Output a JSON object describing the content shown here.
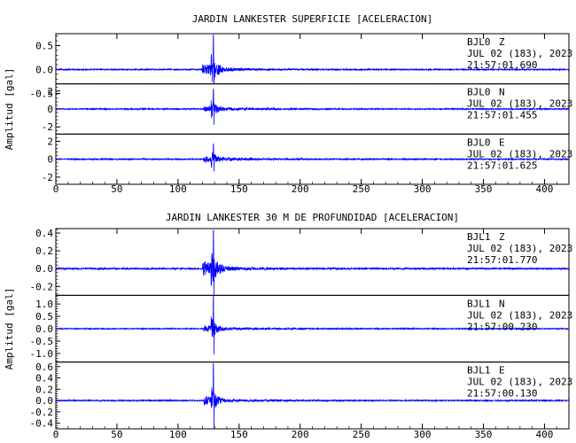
{
  "chart_data": [
    {
      "type": "line",
      "title": "JARDIN LANKESTER SUPERFICIE [ACELERACION]",
      "ylabel": "Amplitud [gal]",
      "xlim": [
        0,
        420
      ],
      "x_ticks": [
        "0",
        "50",
        "100",
        "150",
        "200",
        "250",
        "300",
        "350",
        "400"
      ],
      "trace_color": "#0000ff",
      "series": [
        {
          "name": "Z",
          "station": "BJL0",
          "component": "Z",
          "date": "JUL 02 (183), 2023",
          "time": "21:57:01.690",
          "ylim": [
            -0.3,
            0.75
          ],
          "y_ticks": [
            {
              "value": 0.5,
              "label": "0.5"
            },
            {
              "value": 0.0,
              "label": "0.0"
            },
            {
              "value": -0.5,
              "label": "-0.5"
            }
          ],
          "noise": 0.012,
          "p_onset": 120,
          "s_onset": 127,
          "peak_time": 129,
          "peak_amplitude": 0.72,
          "coda_amplitude": 0.35,
          "coda_decay": 4.5,
          "pre_amplitude": 0.12
        },
        {
          "name": "N",
          "station": "BJL0",
          "component": "N",
          "date": "JUL 02 (183), 2023",
          "time": "21:57:01.455",
          "ylim": [
            -2.8,
            2.8
          ],
          "y_ticks": [
            {
              "value": 2,
              "label": "2"
            },
            {
              "value": 0,
              "label": "0"
            },
            {
              "value": -2,
              "label": "-2"
            }
          ],
          "noise": 0.06,
          "p_onset": 121,
          "s_onset": 127,
          "peak_time": 129,
          "peak_amplitude": 2.2,
          "coda_amplitude": 1.0,
          "coda_decay": 4.0,
          "pre_amplitude": 0.3
        },
        {
          "name": "E",
          "station": "BJL0",
          "component": "E",
          "date": "JUL 02 (183), 2023",
          "time": "21:57:01.625",
          "ylim": [
            -2.8,
            2.8
          ],
          "y_ticks": [
            {
              "value": 2,
              "label": "2"
            },
            {
              "value": 0,
              "label": "0"
            },
            {
              "value": -2,
              "label": "-2"
            }
          ],
          "noise": 0.06,
          "p_onset": 121,
          "s_onset": 127,
          "peak_time": 129,
          "peak_amplitude": 1.7,
          "coda_amplitude": 0.9,
          "coda_decay": 4.0,
          "pre_amplitude": 0.3
        }
      ]
    },
    {
      "type": "line",
      "title": "JARDIN LANKESTER 30 M DE PROFUNDIDAD [ACELERACION]",
      "ylabel": "Amplitud [gal]",
      "xlim": [
        0,
        420
      ],
      "x_ticks": [
        "0",
        "50",
        "100",
        "150",
        "200",
        "250",
        "300",
        "350",
        "400"
      ],
      "trace_color": "#0000ff",
      "series": [
        {
          "name": "Z",
          "station": "BJL1",
          "component": "Z",
          "date": "JUL 02 (183), 2023",
          "time": "21:57:01.770",
          "ylim": [
            -0.3,
            0.45
          ],
          "y_ticks": [
            {
              "value": 0.4,
              "label": "0.4"
            },
            {
              "value": 0.2,
              "label": "0.2"
            },
            {
              "value": 0.0,
              "label": "0.0"
            },
            {
              "value": -0.2,
              "label": "-0.2"
            }
          ],
          "noise": 0.008,
          "p_onset": 120,
          "s_onset": 127,
          "peak_time": 129,
          "peak_amplitude": 0.43,
          "coda_amplitude": 0.2,
          "coda_decay": 4.5,
          "pre_amplitude": 0.08
        },
        {
          "name": "N",
          "station": "BJL1",
          "component": "N",
          "date": "JUL 02 (183), 2023",
          "time": "21:57:00.230",
          "ylim": [
            -1.35,
            1.35
          ],
          "y_ticks": [
            {
              "value": 1.0,
              "label": "1.0"
            },
            {
              "value": 0.5,
              "label": "0.5"
            },
            {
              "value": 0.0,
              "label": "0.0"
            },
            {
              "value": -0.5,
              "label": "-0.5"
            },
            {
              "value": -1.0,
              "label": "-1.0"
            }
          ],
          "noise": 0.02,
          "p_onset": 121,
          "s_onset": 127,
          "peak_time": 129,
          "peak_amplitude": 1.3,
          "coda_amplitude": 0.45,
          "coda_decay": 4.0,
          "pre_amplitude": 0.12
        },
        {
          "name": "E",
          "station": "BJL1",
          "component": "E",
          "date": "JUL 02 (183), 2023",
          "time": "21:57:00.130",
          "ylim": [
            -0.5,
            0.68
          ],
          "y_ticks": [
            {
              "value": 0.6,
              "label": "0.6"
            },
            {
              "value": 0.4,
              "label": "0.4"
            },
            {
              "value": 0.2,
              "label": "0.2"
            },
            {
              "value": 0.0,
              "label": "0.0"
            },
            {
              "value": -0.2,
              "label": "-0.2"
            },
            {
              "value": -0.4,
              "label": "-0.4"
            }
          ],
          "noise": 0.01,
          "p_onset": 121,
          "s_onset": 127,
          "peak_time": 129,
          "peak_amplitude": 0.65,
          "coda_amplitude": 0.25,
          "coda_decay": 4.0,
          "pre_amplitude": 0.08
        }
      ]
    }
  ]
}
